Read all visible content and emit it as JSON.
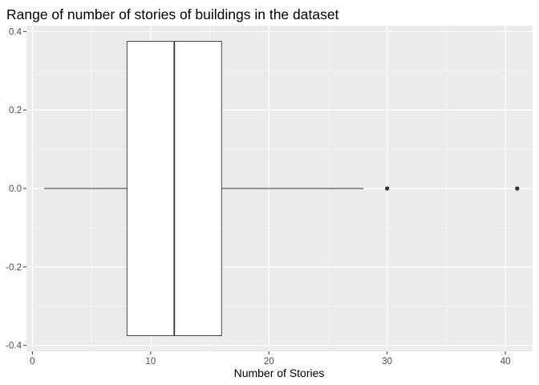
{
  "chart_data": {
    "type": "boxplot",
    "title": "Range of number of stories of buildings in the dataset",
    "xlabel": "Number of Stories",
    "ylabel": "",
    "xlim": [
      -0.5,
      42.3
    ],
    "ylim": [
      -0.415,
      0.415
    ],
    "x_ticks": [
      0,
      10,
      20,
      30,
      40
    ],
    "y_ticks": [
      -0.4,
      -0.2,
      0.0,
      0.2,
      0.4
    ],
    "x_tick_labels": [
      "0",
      "10",
      "20",
      "30",
      "40"
    ],
    "y_tick_labels": [
      "-0.4",
      "-0.2",
      "0.0",
      "0.2",
      "0.4"
    ],
    "grid": true,
    "box": {
      "whisker_low": 1,
      "q1": 8,
      "median": 12,
      "q3": 16,
      "whisker_high": 28,
      "y_center": 0,
      "half_width": 0.375
    },
    "outliers": [
      30,
      41
    ]
  },
  "colors": {
    "panel": "#ebebeb",
    "grid_major": "#ffffff",
    "grid_minor": "#f5f5f5",
    "box_fill": "#ffffff",
    "box_stroke": "#333333",
    "outlier": "#333333",
    "tick": "#333333"
  }
}
